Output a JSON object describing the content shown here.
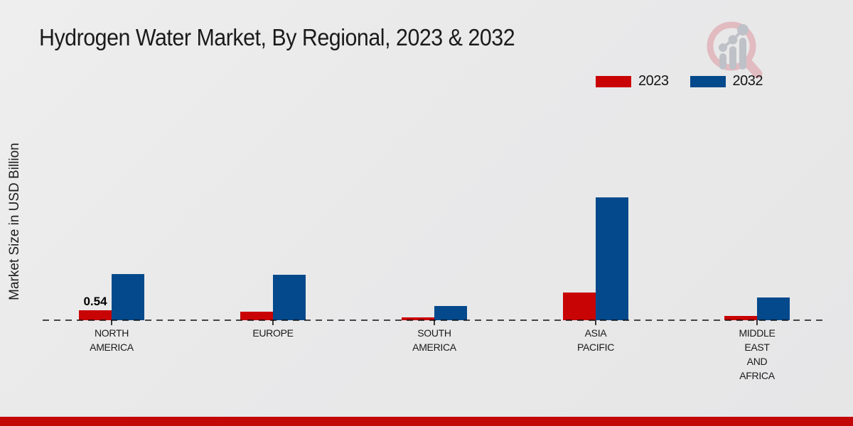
{
  "title": "Hydrogen Water Market, By Regional, 2023 & 2032",
  "y_axis_label": "Market Size in USD Billion",
  "legend": {
    "items": [
      {
        "label": "2023",
        "color": "#c90404"
      },
      {
        "label": "2032",
        "color": "#03498b"
      }
    ]
  },
  "colors": {
    "series_2023": "#c90404",
    "series_2032": "#03498b",
    "footer_bar": "#c30808",
    "baseline_dash": "rgba(0,0,0,0.70)",
    "logo_ring": "#e0b4ba",
    "logo_bars": "#b7bbc2"
  },
  "footer": {
    "decoration": "red-accent-strip"
  },
  "watermark": {
    "icon": "magnifier-bar-chart-logo"
  },
  "chart_data": {
    "type": "bar",
    "title": "Hydrogen Water Market, By Regional, 2023 & 2032",
    "xlabel": "",
    "ylabel": "Market Size in USD Billion",
    "categories": [
      "NORTH AMERICA",
      "EUROPE",
      "SOUTH AMERICA",
      "ASIA PACIFIC",
      "MIDDLE EAST AND AFRICA"
    ],
    "category_lines": [
      [
        "NORTH",
        "AMERICA"
      ],
      [
        "EUROPE"
      ],
      [
        "SOUTH",
        "AMERICA"
      ],
      [
        "ASIA",
        "PACIFIC"
      ],
      [
        "MIDDLE",
        "EAST",
        "AND",
        "AFRICA"
      ]
    ],
    "series": [
      {
        "name": "2023",
        "color": "#c90404",
        "values": [
          0.54,
          0.49,
          0.15,
          1.55,
          0.25
        ]
      },
      {
        "name": "2032",
        "color": "#03498b",
        "values": [
          2.57,
          2.5,
          0.78,
          6.8,
          1.27
        ]
      }
    ],
    "data_labels": [
      {
        "series_index": 0,
        "category_index": 0,
        "text": "0.54"
      }
    ],
    "units": "USD Billion",
    "ylim": [
      0,
      7
    ],
    "grid": false,
    "axis_line": "dashed-baseline-only",
    "legend_position": "top-right"
  }
}
